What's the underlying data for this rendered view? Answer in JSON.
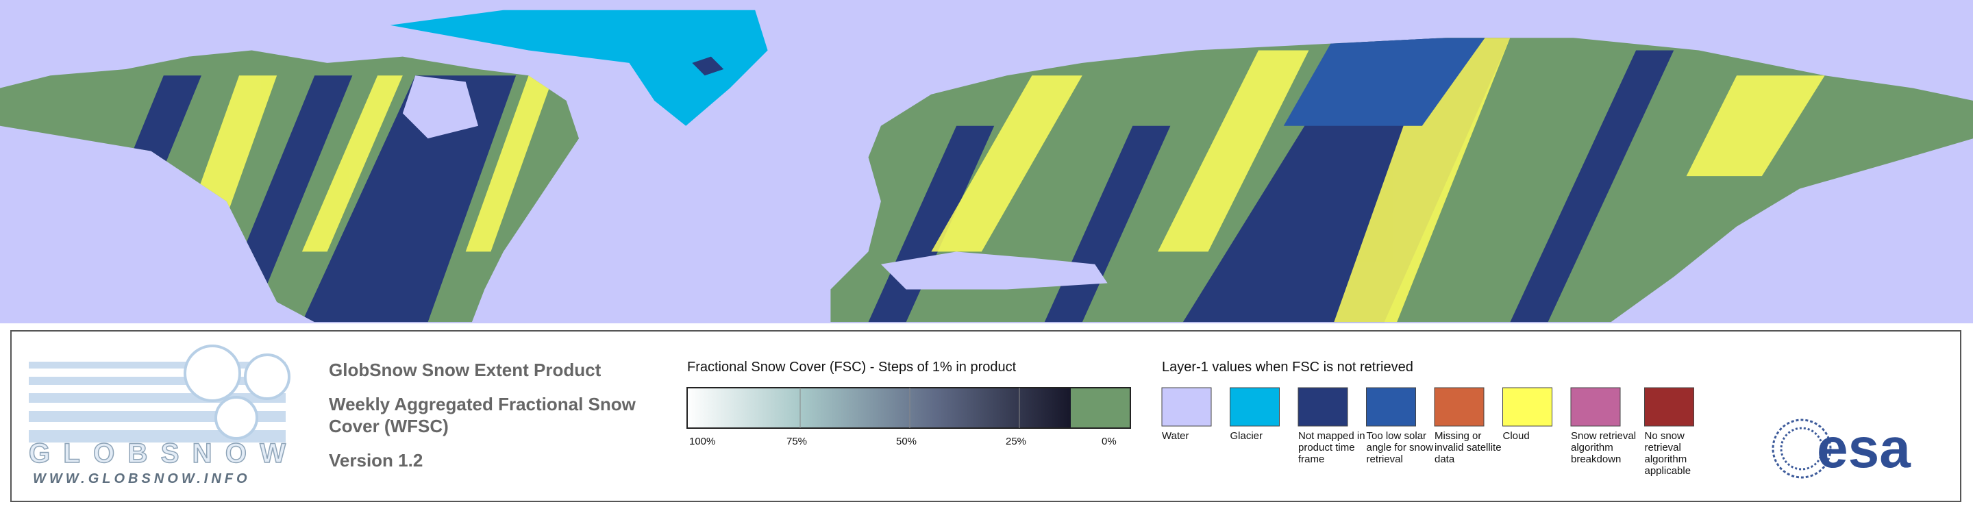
{
  "logo": {
    "name": "GLOBSNOW",
    "url": "WWW.GLOBSNOW.INFO"
  },
  "product": {
    "title": "GlobSnow Snow Extent Product",
    "subtitle": "Weekly Aggregated Fractional Snow Cover (WFSC)",
    "version": "Version 1.2"
  },
  "fsc_scale": {
    "title": "Fractional Snow Cover (FSC) - Steps of 1% in product",
    "ticks": [
      "100%",
      "75%",
      "50%",
      "25%",
      "0%"
    ]
  },
  "layer1": {
    "title": "Layer-1 values when FSC is not retrieved",
    "classes": [
      {
        "label": "Water",
        "color": "#c8c8fc"
      },
      {
        "label": "Glacier",
        "color": "#00b4e6"
      },
      {
        "label": "Not mapped in product time frame",
        "color": "#263a7a"
      },
      {
        "label": "Too low solar angle for snow retrieval",
        "color": "#2a5aa8"
      },
      {
        "label": "Missing or invalid satellite data",
        "color": "#d0643c"
      },
      {
        "label": "Cloud",
        "color": "#ffff5a"
      },
      {
        "label": "Snow retrieval algorithm breakdown",
        "color": "#c0649c"
      },
      {
        "label": "No snow retrieval algorithm applicable",
        "color": "#9a2c2c"
      }
    ]
  },
  "esa": "esa"
}
